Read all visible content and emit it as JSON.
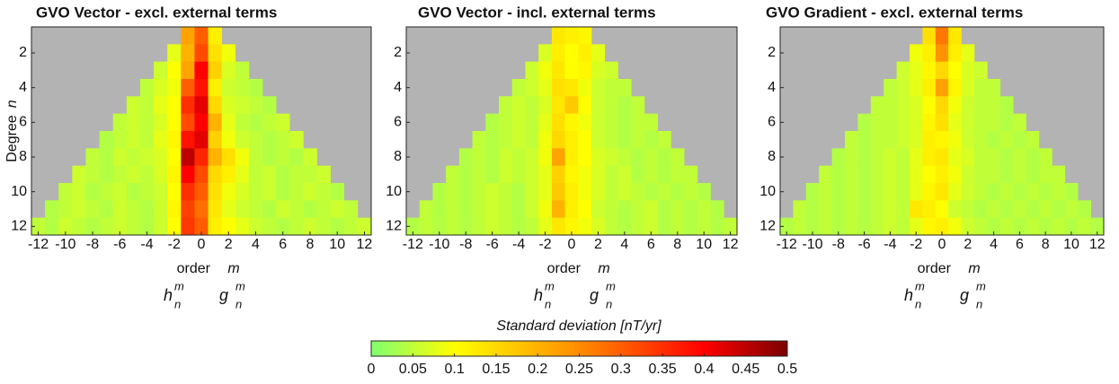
{
  "chart_data": [
    {
      "type": "heatmap",
      "title": "GVO Vector - excl. external terms",
      "xlabel": "order",
      "xlabel_var": "m",
      "ylabel": "Degree",
      "ylabel_var": "n",
      "annotations": [
        {
          "base": "h",
          "sup": "m",
          "sub": "n"
        },
        {
          "base": "g",
          "sup": "m",
          "sub": "n"
        }
      ],
      "x": [
        -12,
        -11,
        -10,
        -9,
        -8,
        -7,
        -6,
        -5,
        -4,
        -3,
        -2,
        -1,
        0,
        1,
        2,
        3,
        4,
        5,
        6,
        7,
        8,
        9,
        10,
        11,
        12
      ],
      "y": [
        1,
        2,
        3,
        4,
        5,
        6,
        7,
        8,
        9,
        10,
        11,
        12
      ],
      "xlim": [
        -12.5,
        12.5
      ],
      "ylim": [
        0.5,
        12.5
      ],
      "yreverse": true,
      "xticks": [
        -12,
        -10,
        -8,
        -6,
        -4,
        -2,
        0,
        2,
        4,
        6,
        8,
        10,
        12
      ],
      "yticks": [
        2,
        4,
        6,
        8,
        10,
        12
      ],
      "nan_color": "#b3b3b3",
      "z": [
        [
          null,
          null,
          null,
          null,
          null,
          null,
          null,
          null,
          null,
          null,
          null,
          0.22,
          0.3,
          0.12,
          null,
          null,
          null,
          null,
          null,
          null,
          null,
          null,
          null,
          null,
          null
        ],
        [
          null,
          null,
          null,
          null,
          null,
          null,
          null,
          null,
          null,
          null,
          0.08,
          0.2,
          0.32,
          0.14,
          0.09,
          null,
          null,
          null,
          null,
          null,
          null,
          null,
          null,
          null,
          null
        ],
        [
          null,
          null,
          null,
          null,
          null,
          null,
          null,
          null,
          null,
          0.06,
          0.1,
          0.22,
          0.4,
          0.16,
          0.07,
          0.05,
          null,
          null,
          null,
          null,
          null,
          null,
          null,
          null,
          null
        ],
        [
          null,
          null,
          null,
          null,
          null,
          null,
          null,
          null,
          0.05,
          0.07,
          0.09,
          0.3,
          0.38,
          0.12,
          0.06,
          0.05,
          0.04,
          null,
          null,
          null,
          null,
          null,
          null,
          null,
          null
        ],
        [
          null,
          null,
          null,
          null,
          null,
          null,
          null,
          0.06,
          0.05,
          0.08,
          0.1,
          0.35,
          0.42,
          0.15,
          0.07,
          0.06,
          0.05,
          0.04,
          null,
          null,
          null,
          null,
          null,
          null,
          null
        ],
        [
          null,
          null,
          null,
          null,
          null,
          null,
          0.05,
          0.06,
          0.05,
          0.07,
          0.1,
          0.32,
          0.4,
          0.2,
          0.08,
          0.05,
          0.04,
          0.05,
          0.06,
          null,
          null,
          null,
          null,
          null,
          null
        ],
        [
          null,
          null,
          null,
          null,
          null,
          0.04,
          0.05,
          0.06,
          0.05,
          0.08,
          0.11,
          0.38,
          0.42,
          0.16,
          0.09,
          0.06,
          0.05,
          0.04,
          0.05,
          0.06,
          null,
          null,
          null,
          null,
          null
        ],
        [
          null,
          null,
          null,
          null,
          0.05,
          0.04,
          0.06,
          0.05,
          0.06,
          0.07,
          0.1,
          0.45,
          0.36,
          0.2,
          0.14,
          0.09,
          0.05,
          0.04,
          0.05,
          0.04,
          0.06,
          null,
          null,
          null,
          null
        ],
        [
          null,
          null,
          null,
          0.06,
          0.05,
          0.04,
          0.05,
          0.06,
          0.05,
          0.07,
          0.11,
          0.4,
          0.32,
          0.15,
          0.12,
          0.08,
          0.05,
          0.06,
          0.04,
          0.05,
          0.05,
          0.06,
          null,
          null,
          null
        ],
        [
          null,
          null,
          0.05,
          0.06,
          0.04,
          0.05,
          0.06,
          0.04,
          0.05,
          0.06,
          0.1,
          0.35,
          0.3,
          0.14,
          0.09,
          0.07,
          0.05,
          0.06,
          0.04,
          0.05,
          0.06,
          0.05,
          0.04,
          null,
          null
        ],
        [
          null,
          0.04,
          0.05,
          0.06,
          0.05,
          0.04,
          0.06,
          0.05,
          0.04,
          0.06,
          0.11,
          0.33,
          0.28,
          0.13,
          0.08,
          0.06,
          0.05,
          0.04,
          0.06,
          0.05,
          0.04,
          0.05,
          0.06,
          0.05,
          null
        ],
        [
          0.05,
          0.04,
          0.06,
          0.05,
          0.04,
          0.05,
          0.06,
          0.05,
          0.04,
          0.06,
          0.1,
          0.34,
          0.3,
          0.12,
          0.1,
          0.08,
          0.06,
          0.05,
          0.04,
          0.05,
          0.06,
          0.05,
          0.04,
          0.05,
          0.06
        ]
      ]
    },
    {
      "type": "heatmap",
      "title": "GVO Vector - incl. external terms",
      "xlabel": "order",
      "xlabel_var": "m",
      "annotations": [
        {
          "base": "h",
          "sup": "m",
          "sub": "n"
        },
        {
          "base": "g",
          "sup": "m",
          "sub": "n"
        }
      ],
      "x": [
        -12,
        -11,
        -10,
        -9,
        -8,
        -7,
        -6,
        -5,
        -4,
        -3,
        -2,
        -1,
        0,
        1,
        2,
        3,
        4,
        5,
        6,
        7,
        8,
        9,
        10,
        11,
        12
      ],
      "y": [
        1,
        2,
        3,
        4,
        5,
        6,
        7,
        8,
        9,
        10,
        11,
        12
      ],
      "xlim": [
        -12.5,
        12.5
      ],
      "ylim": [
        0.5,
        12.5
      ],
      "yreverse": true,
      "xticks": [
        -12,
        -10,
        -8,
        -6,
        -4,
        -2,
        0,
        2,
        4,
        6,
        8,
        10,
        12
      ],
      "yticks": [
        2,
        4,
        6,
        8,
        10,
        12
      ],
      "nan_color": "#b3b3b3",
      "z": [
        [
          null,
          null,
          null,
          null,
          null,
          null,
          null,
          null,
          null,
          null,
          null,
          0.13,
          0.12,
          0.11,
          null,
          null,
          null,
          null,
          null,
          null,
          null,
          null,
          null,
          null,
          null
        ],
        [
          null,
          null,
          null,
          null,
          null,
          null,
          null,
          null,
          null,
          null,
          0.07,
          0.12,
          0.1,
          0.12,
          0.08,
          null,
          null,
          null,
          null,
          null,
          null,
          null,
          null,
          null,
          null
        ],
        [
          null,
          null,
          null,
          null,
          null,
          null,
          null,
          null,
          null,
          0.06,
          0.09,
          0.13,
          0.1,
          0.11,
          0.07,
          0.06,
          null,
          null,
          null,
          null,
          null,
          null,
          null,
          null,
          null
        ],
        [
          null,
          null,
          null,
          null,
          null,
          null,
          null,
          null,
          0.05,
          0.06,
          0.08,
          0.14,
          0.13,
          0.09,
          0.06,
          0.05,
          0.05,
          null,
          null,
          null,
          null,
          null,
          null,
          null,
          null
        ],
        [
          null,
          null,
          null,
          null,
          null,
          null,
          null,
          0.05,
          0.06,
          0.05,
          0.07,
          0.13,
          0.17,
          0.1,
          0.06,
          0.05,
          0.04,
          0.05,
          null,
          null,
          null,
          null,
          null,
          null,
          null
        ],
        [
          null,
          null,
          null,
          null,
          null,
          null,
          0.04,
          0.05,
          0.06,
          0.05,
          0.08,
          0.14,
          0.11,
          0.09,
          0.06,
          0.05,
          0.04,
          0.05,
          0.05,
          null,
          null,
          null,
          null,
          null,
          null
        ],
        [
          null,
          null,
          null,
          null,
          null,
          0.05,
          0.04,
          0.05,
          0.06,
          0.05,
          0.09,
          0.15,
          0.12,
          0.1,
          0.06,
          0.05,
          0.04,
          0.05,
          0.04,
          0.05,
          null,
          null,
          null,
          null,
          null
        ],
        [
          null,
          null,
          null,
          null,
          0.04,
          0.05,
          0.04,
          0.06,
          0.05,
          0.06,
          0.09,
          0.22,
          0.12,
          0.1,
          0.07,
          0.06,
          0.05,
          0.04,
          0.05,
          0.04,
          0.05,
          null,
          null,
          null,
          null
        ],
        [
          null,
          null,
          null,
          0.05,
          0.04,
          0.05,
          0.04,
          0.06,
          0.05,
          0.06,
          0.08,
          0.16,
          0.11,
          0.09,
          0.07,
          0.05,
          0.06,
          0.04,
          0.05,
          0.04,
          0.05,
          0.05,
          null,
          null,
          null
        ],
        [
          null,
          null,
          0.04,
          0.05,
          0.04,
          0.05,
          0.06,
          0.05,
          0.04,
          0.06,
          0.08,
          0.17,
          0.12,
          0.09,
          0.07,
          0.05,
          0.06,
          0.05,
          0.04,
          0.05,
          0.04,
          0.05,
          0.04,
          null,
          null
        ],
        [
          null,
          0.05,
          0.04,
          0.05,
          0.04,
          0.05,
          0.06,
          0.05,
          0.04,
          0.06,
          0.09,
          0.2,
          0.12,
          0.1,
          0.06,
          0.05,
          0.04,
          0.05,
          0.06,
          0.04,
          0.05,
          0.04,
          0.05,
          0.04,
          null
        ],
        [
          0.04,
          0.05,
          0.04,
          0.05,
          0.04,
          0.05,
          0.06,
          0.05,
          0.04,
          0.05,
          0.08,
          0.13,
          0.11,
          0.09,
          0.07,
          0.05,
          0.04,
          0.05,
          0.06,
          0.04,
          0.05,
          0.04,
          0.05,
          0.04,
          0.05
        ]
      ]
    },
    {
      "type": "heatmap",
      "title": "GVO Gradient - excl. external terms",
      "xlabel": "order",
      "xlabel_var": "m",
      "annotations": [
        {
          "base": "h",
          "sup": "m",
          "sub": "n"
        },
        {
          "base": "g",
          "sup": "m",
          "sub": "n"
        }
      ],
      "x": [
        -12,
        -11,
        -10,
        -9,
        -8,
        -7,
        -6,
        -5,
        -4,
        -3,
        -2,
        -1,
        0,
        1,
        2,
        3,
        4,
        5,
        6,
        7,
        8,
        9,
        10,
        11,
        12
      ],
      "y": [
        1,
        2,
        3,
        4,
        5,
        6,
        7,
        8,
        9,
        10,
        11,
        12
      ],
      "xlim": [
        -12.5,
        12.5
      ],
      "ylim": [
        0.5,
        12.5
      ],
      "yreverse": true,
      "xticks": [
        -12,
        -10,
        -8,
        -6,
        -4,
        -2,
        0,
        2,
        4,
        6,
        8,
        10,
        12
      ],
      "yticks": [
        2,
        4,
        6,
        8,
        10,
        12
      ],
      "nan_color": "#b3b3b3",
      "z": [
        [
          null,
          null,
          null,
          null,
          null,
          null,
          null,
          null,
          null,
          null,
          null,
          0.14,
          0.27,
          0.13,
          null,
          null,
          null,
          null,
          null,
          null,
          null,
          null,
          null,
          null,
          null
        ],
        [
          null,
          null,
          null,
          null,
          null,
          null,
          null,
          null,
          null,
          null,
          0.09,
          0.12,
          0.24,
          0.12,
          0.08,
          null,
          null,
          null,
          null,
          null,
          null,
          null,
          null,
          null,
          null
        ],
        [
          null,
          null,
          null,
          null,
          null,
          null,
          null,
          null,
          null,
          0.06,
          0.08,
          0.11,
          0.15,
          0.1,
          0.07,
          0.06,
          null,
          null,
          null,
          null,
          null,
          null,
          null,
          null,
          null
        ],
        [
          null,
          null,
          null,
          null,
          null,
          null,
          null,
          null,
          0.05,
          0.06,
          0.08,
          0.12,
          0.22,
          0.11,
          0.07,
          0.05,
          0.05,
          null,
          null,
          null,
          null,
          null,
          null,
          null,
          null
        ],
        [
          null,
          null,
          null,
          null,
          null,
          null,
          null,
          0.05,
          0.05,
          0.06,
          0.07,
          0.1,
          0.15,
          0.09,
          0.06,
          0.05,
          0.05,
          0.04,
          null,
          null,
          null,
          null,
          null,
          null,
          null
        ],
        [
          null,
          null,
          null,
          null,
          null,
          null,
          0.04,
          0.05,
          0.05,
          0.06,
          0.07,
          0.11,
          0.14,
          0.08,
          0.06,
          0.05,
          0.05,
          0.04,
          0.05,
          null,
          null,
          null,
          null,
          null,
          null
        ],
        [
          null,
          null,
          null,
          null,
          null,
          0.05,
          0.04,
          0.05,
          0.05,
          0.06,
          0.07,
          0.12,
          0.11,
          0.09,
          0.06,
          0.05,
          0.04,
          0.05,
          0.04,
          0.05,
          null,
          null,
          null,
          null,
          null
        ],
        [
          null,
          null,
          null,
          null,
          0.04,
          0.05,
          0.04,
          0.05,
          0.06,
          0.05,
          0.08,
          0.12,
          0.13,
          0.08,
          0.07,
          0.05,
          0.05,
          0.04,
          0.05,
          0.04,
          0.05,
          null,
          null,
          null,
          null
        ],
        [
          null,
          null,
          null,
          0.05,
          0.04,
          0.05,
          0.04,
          0.05,
          0.06,
          0.05,
          0.08,
          0.1,
          0.12,
          0.09,
          0.06,
          0.05,
          0.05,
          0.04,
          0.05,
          0.04,
          0.05,
          0.05,
          null,
          null,
          null
        ],
        [
          null,
          null,
          0.04,
          0.05,
          0.04,
          0.05,
          0.04,
          0.05,
          0.06,
          0.05,
          0.08,
          0.11,
          0.13,
          0.08,
          0.06,
          0.05,
          0.04,
          0.05,
          0.04,
          0.05,
          0.04,
          0.05,
          0.04,
          null,
          null
        ],
        [
          null,
          0.05,
          0.04,
          0.05,
          0.04,
          0.05,
          0.04,
          0.05,
          0.06,
          0.05,
          0.13,
          0.12,
          0.1,
          0.06,
          0.05,
          0.04,
          0.05,
          0.04,
          0.05,
          0.04,
          0.05,
          0.04,
          0.05,
          0.04,
          null
        ],
        [
          0.04,
          0.05,
          0.04,
          0.05,
          0.04,
          0.05,
          0.04,
          0.05,
          0.06,
          0.05,
          0.08,
          0.11,
          0.12,
          0.09,
          0.06,
          0.05,
          0.04,
          0.05,
          0.04,
          0.05,
          0.04,
          0.05,
          0.04,
          0.05,
          0.04
        ]
      ]
    }
  ],
  "colorbar": {
    "label": "Standard deviation [nT/yr]",
    "lim": [
      0,
      0.5
    ],
    "ticks": [
      0,
      0.05,
      0.1,
      0.15,
      0.2,
      0.25,
      0.3,
      0.35,
      0.4,
      0.45,
      0.5
    ],
    "colormap": [
      {
        "value": 0,
        "color": "#80ff70"
      },
      {
        "value": 0.1,
        "color": "#ffff00"
      },
      {
        "value": 0.25,
        "color": "#ff8c00"
      },
      {
        "value": 0.4,
        "color": "#ff0000"
      },
      {
        "value": 0.5,
        "color": "#7a0000"
      }
    ]
  }
}
